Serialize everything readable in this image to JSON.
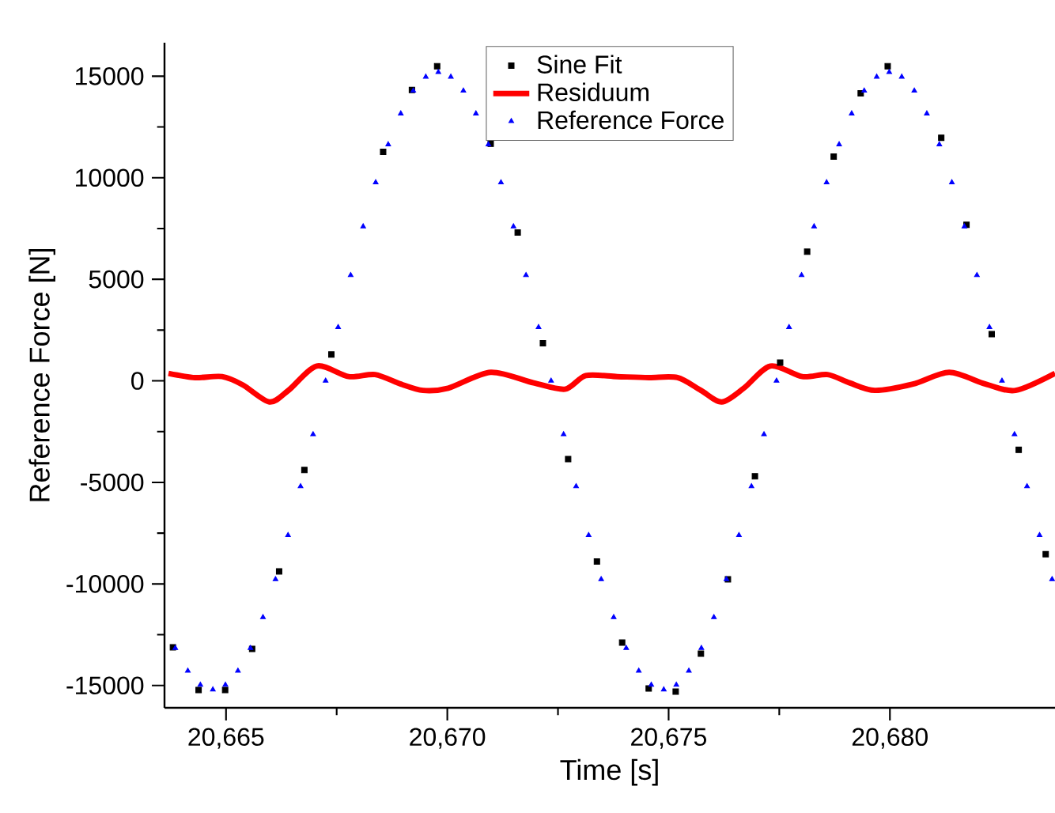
{
  "chart_data": {
    "type": "scatter",
    "xlabel": "Time [s]",
    "ylabel": "Reference Force [N]",
    "xlim": [
      20663.61,
      20683.73
    ],
    "ylim": [
      -16100,
      16650
    ],
    "xticks": [
      {
        "value": 20665,
        "label": "20,665"
      },
      {
        "value": 20670,
        "label": "20,670"
      },
      {
        "value": 20675,
        "label": "20,675"
      },
      {
        "value": 20680,
        "label": "20,680"
      }
    ],
    "yticks": [
      -15000,
      -10000,
      -5000,
      0,
      5000,
      10000,
      15000
    ],
    "grid": false,
    "legend": "top",
    "series": [
      {
        "name": "Sine Fit",
        "color": "#000000",
        "marker": "square",
        "x": [
          20663.8,
          20664.38,
          20664.98,
          20665.59,
          20666.2,
          20666.77,
          20667.38,
          20668.55,
          20669.2,
          20669.77,
          20670.98,
          20671.59,
          20672.16,
          20672.73,
          20673.38,
          20673.95,
          20674.55,
          20675.16,
          20675.73,
          20676.34,
          20676.95,
          20677.52,
          20678.13,
          20678.73,
          20679.34,
          20679.95,
          20681.16,
          20681.73,
          20682.3,
          20682.91,
          20683.52
        ],
        "values": [
          -13120,
          -15220,
          -15220,
          -13200,
          -9380,
          -4390,
          1300,
          11280,
          14320,
          15490,
          11670,
          7300,
          1850,
          -3850,
          -8900,
          -12890,
          -15150,
          -15300,
          -13430,
          -9770,
          -4700,
          900,
          6360,
          11040,
          14160,
          15490,
          11970,
          7680,
          2300,
          -3400,
          -8540
        ]
      },
      {
        "name": "Residuum",
        "color": "#ff0000",
        "type": "line",
        "marker": "none",
        "x": [
          20663.7,
          20664.3,
          20664.91,
          20665.38,
          20665.98,
          20666.41,
          20667.05,
          20667.77,
          20668.37,
          20668.95,
          20669.45,
          20670.02,
          20670.98,
          20671.95,
          20672.66,
          20673.13,
          20673.84,
          20674.55,
          20675.2,
          20675.73,
          20676.2,
          20676.7,
          20677.3,
          20678.02,
          20678.59,
          20679.09,
          20679.66,
          20680.52,
          20681.34,
          20682.16,
          20682.84,
          20683.73
        ],
        "values": [
          370,
          160,
          210,
          -200,
          -1040,
          -470,
          730,
          210,
          310,
          -160,
          -470,
          -360,
          420,
          -100,
          -410,
          260,
          210,
          160,
          160,
          -470,
          -1040,
          -360,
          730,
          210,
          310,
          -100,
          -470,
          -160,
          420,
          -160,
          -470,
          370
        ]
      },
      {
        "name": "Reference Force",
        "color": "#0000ff",
        "marker": "triangle",
        "x": [
          20663.854,
          20664.137,
          20664.42,
          20664.703,
          20664.986,
          20665.269,
          20665.552,
          20665.835,
          20666.118,
          20666.401,
          20666.684,
          20666.967,
          20667.25,
          20667.533,
          20667.816,
          20668.099,
          20668.382,
          20668.665,
          20668.948,
          20669.231,
          20669.514,
          20669.797,
          20670.08,
          20670.363,
          20670.646,
          20670.929,
          20671.212,
          20671.495,
          20671.778,
          20672.061,
          20672.344,
          20672.627,
          20672.91,
          20673.193,
          20673.476,
          20673.759,
          20674.042,
          20674.325,
          20674.608,
          20674.891,
          20675.174,
          20675.457,
          20675.74,
          20676.023,
          20676.306,
          20676.589,
          20676.872,
          20677.155,
          20677.438,
          20677.721,
          20678.004,
          20678.287,
          20678.57,
          20678.853,
          20679.136,
          20679.419,
          20679.702,
          20679.985,
          20680.268,
          20680.551,
          20680.834,
          20681.117,
          20681.4,
          20681.683,
          20681.966,
          20682.249,
          20682.532,
          20682.815,
          20683.098,
          20683.381,
          20683.664
        ],
        "values": [
          -13160,
          -14280,
          -14970,
          -15200,
          -14970,
          -14280,
          -13160,
          -11640,
          -9770,
          -7600,
          -5200,
          -2640,
          0,
          2640,
          5200,
          7600,
          9770,
          11640,
          13160,
          14280,
          14970,
          15200,
          14970,
          14280,
          13160,
          11640,
          9770,
          7600,
          5200,
          2640,
          0,
          -2640,
          -5200,
          -7600,
          -9770,
          -11640,
          -13160,
          -14280,
          -14970,
          -15200,
          -14970,
          -14280,
          -13160,
          -11640,
          -9770,
          -7600,
          -5200,
          -2640,
          0,
          2640,
          5200,
          7600,
          9770,
          11640,
          13160,
          14280,
          14970,
          15200,
          14970,
          14280,
          13160,
          11640,
          9770,
          7600,
          5200,
          2640,
          0,
          -2640,
          -5200,
          -7600,
          -9770
        ]
      }
    ]
  }
}
